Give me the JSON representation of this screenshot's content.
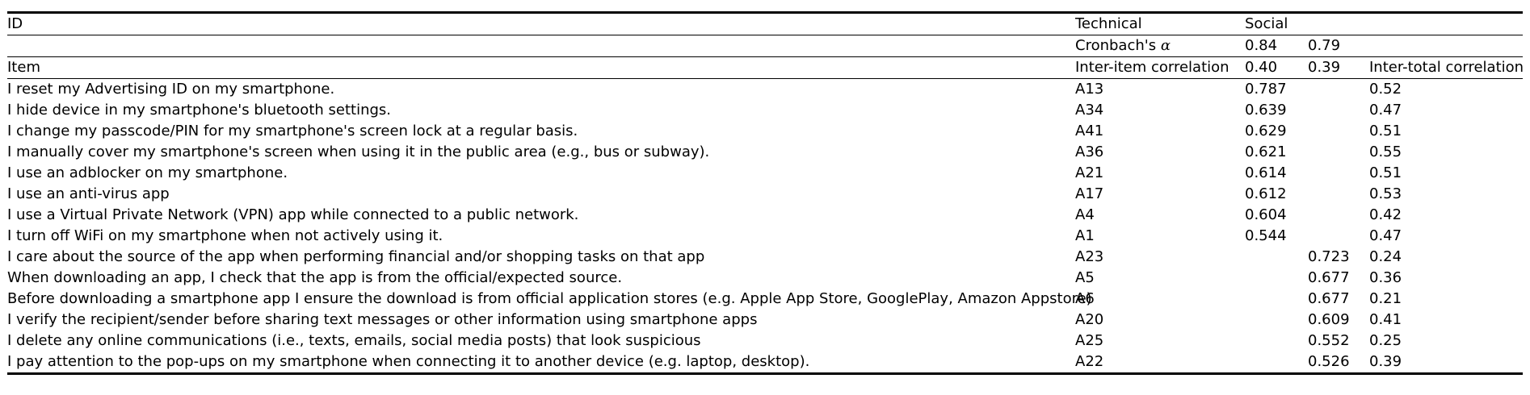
{
  "header": {
    "id_label": "ID",
    "technical_label": "Technical",
    "social_label": "Social",
    "cronbach_label": "Cronbach's",
    "cronbach_symbol": "α",
    "cronbach_technical": "0.84",
    "cronbach_social": "0.79",
    "item_label": "Item",
    "inter_item_label": "Inter-item correlation",
    "inter_item_technical": "0.40",
    "inter_item_social": "0.39",
    "inter_total_label": "Inter-total correlation"
  },
  "rows": [
    {
      "item": "I reset my Advertising ID on my smartphone.",
      "id": "A13",
      "technical": "0.787",
      "social": "",
      "total": "0.52"
    },
    {
      "item": "I hide device in my smartphone's bluetooth settings.",
      "id": "A34",
      "technical": "0.639",
      "social": "",
      "total": "0.47"
    },
    {
      "item": "I change my passcode/PIN for my smartphone's screen lock at a regular basis.",
      "id": "A41",
      "technical": "0.629",
      "social": "",
      "total": "0.51"
    },
    {
      "item": "I manually cover my smartphone's screen when using it in the public area (e.g., bus or subway).",
      "id": "A36",
      "technical": "0.621",
      "social": "",
      "total": "0.55"
    },
    {
      "item": "I use an adblocker on my smartphone.",
      "id": "A21",
      "technical": "0.614",
      "social": "",
      "total": "0.51"
    },
    {
      "item": "I use an anti-virus app",
      "id": "A17",
      "technical": "0.612",
      "social": "",
      "total": "0.53"
    },
    {
      "item": "I use a Virtual Private Network (VPN) app while connected to a public network.",
      "id": "A4",
      "technical": "0.604",
      "social": "",
      "total": "0.42"
    },
    {
      "item": "I turn off WiFi on my smartphone when not actively using it.",
      "id": "A1",
      "technical": "0.544",
      "social": "",
      "total": "0.47"
    },
    {
      "item": "I care about the source of the app when performing financial and/or shopping tasks on that app",
      "id": "A23",
      "technical": "",
      "social": "0.723",
      "total": "0.24"
    },
    {
      "item": "When downloading an app, I check that the app is from the official/expected source.",
      "id": "A5",
      "technical": "",
      "social": "0.677",
      "total": "0.36"
    },
    {
      "item": "Before downloading a smartphone app I ensure the download is from official application stores (e.g. Apple App Store, GooglePlay, Amazon Appstore)",
      "id": "A6",
      "technical": "",
      "social": "0.677",
      "total": "0.21"
    },
    {
      "item": "I verify the recipient/sender before sharing text messages or other information using smartphone apps",
      "id": "A20",
      "technical": "",
      "social": "0.609",
      "total": "0.41"
    },
    {
      "item": "I delete any online communications (i.e., texts, emails, social media posts) that look suspicious",
      "id": "A25",
      "technical": "",
      "social": "0.552",
      "total": "0.25"
    },
    {
      "item": "I pay attention to the pop-ups on my smartphone when connecting it to another device (e.g. laptop, desktop).",
      "id": "A22",
      "technical": "",
      "social": "0.526",
      "total": "0.39"
    }
  ]
}
